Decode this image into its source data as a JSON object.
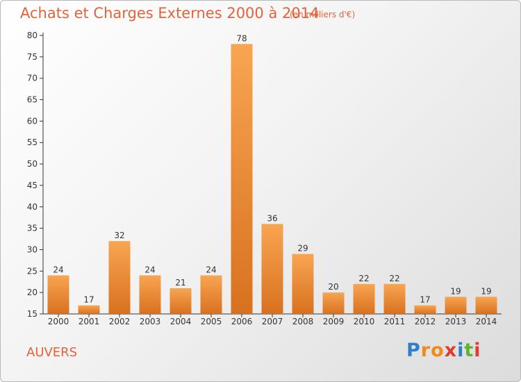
{
  "chart_data": {
    "type": "bar",
    "title": "Achats et Charges Externes 2000 à 2014",
    "subtitle": "(en milliers d'€)",
    "categories": [
      "2000",
      "2001",
      "2002",
      "2003",
      "2004",
      "2005",
      "2006",
      "2007",
      "2008",
      "2009",
      "2010",
      "2011",
      "2012",
      "2013",
      "2014"
    ],
    "values": [
      24,
      17,
      32,
      24,
      21,
      24,
      78,
      36,
      29,
      20,
      22,
      22,
      17,
      19,
      19
    ],
    "data_labels": [
      "24",
      "17",
      "32",
      "24",
      "21",
      "24",
      "78",
      "36",
      "29",
      "20",
      "22",
      "22",
      "17",
      "19",
      "19"
    ],
    "ylim": [
      15,
      80
    ],
    "yticks": [
      15,
      20,
      25,
      30,
      35,
      40,
      45,
      50,
      55,
      60,
      65,
      70,
      75,
      80
    ],
    "ytick_labels": [
      "15",
      "20",
      "25",
      "30",
      "35",
      "40",
      "45",
      "50",
      "55",
      "60",
      "65",
      "70",
      "75",
      "80"
    ],
    "grid": false,
    "bar_color_light": "#f8a552",
    "bar_color_dark": "#d8711f"
  },
  "footer": {
    "place": "AUVERS",
    "logo_letters": [
      "P",
      "r",
      "o",
      "x",
      "i",
      "t",
      "i"
    ],
    "logo_colors": [
      "#2f7fc8",
      "#f08a1c",
      "#f08a1c",
      "#e23b2e",
      "#2f7fc8",
      "#5ab531",
      "#e23b2e"
    ]
  },
  "colors": {
    "title": "#e4623a",
    "axis": "#333333"
  }
}
